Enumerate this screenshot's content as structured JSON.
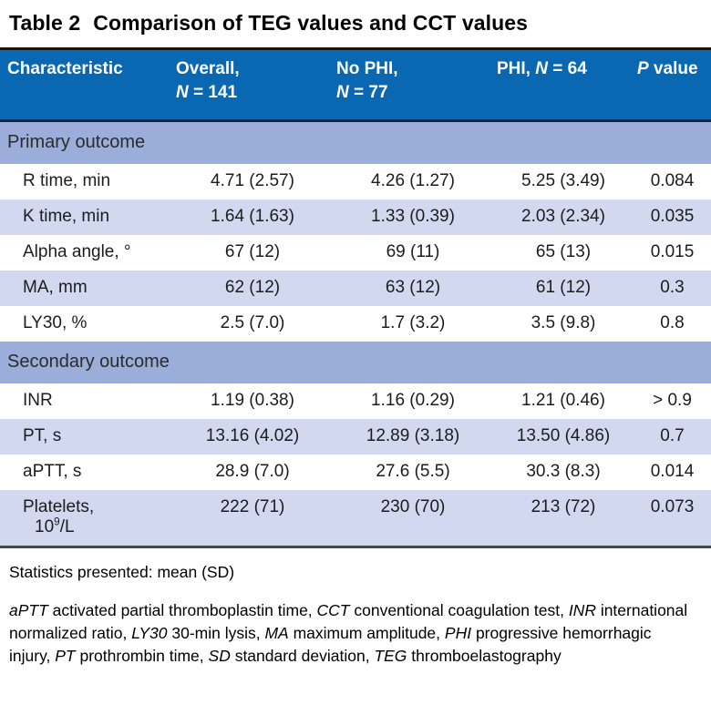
{
  "title": {
    "label": "Table 2",
    "text": "Comparison of TEG values and CCT values"
  },
  "colors": {
    "header-bg": "#0a67b1",
    "header-text": "#ffffff",
    "section-bg": "#9badd9",
    "stripe-bg": "#d2d8ef",
    "rule-dark": "#101f3c",
    "border-top": "#151515",
    "border-bottom": "#474747",
    "text": "#1c1c1c"
  },
  "table": {
    "columns": {
      "c1": {
        "label": "Characteristic"
      },
      "c2": {
        "line1": "Overall,",
        "n": "N",
        "rest": " = 141"
      },
      "c3": {
        "line1": "No PHI,",
        "n": "N",
        "rest": " = 77"
      },
      "c4": {
        "pre": "PHI, ",
        "n": "N",
        "rest": " = 64"
      },
      "c5": {
        "p": "P",
        "rest": " value"
      }
    },
    "sections": [
      {
        "header": "Primary outcome",
        "rows": [
          {
            "label": "R time, min",
            "values": [
              "4.71 (2.57)",
              "4.26 (1.27)",
              "5.25 (3.49)",
              "0.084"
            ]
          },
          {
            "label": "K time, min",
            "values": [
              "1.64 (1.63)",
              "1.33 (0.39)",
              "2.03 (2.34)",
              "0.035"
            ]
          },
          {
            "label": "Alpha angle, °",
            "values": [
              "67 (12)",
              "69 (11)",
              "65 (13)",
              "0.015"
            ]
          },
          {
            "label": "MA, mm",
            "values": [
              "62 (12)",
              "63 (12)",
              "61 (12)",
              "0.3"
            ]
          },
          {
            "label": "LY30, %",
            "values": [
              "2.5 (7.0)",
              "1.7 (3.2)",
              "3.5 (9.8)",
              "0.8"
            ]
          }
        ]
      },
      {
        "header": "Secondary outcome",
        "rows": [
          {
            "label": "INR",
            "values": [
              "1.19 (0.38)",
              "1.16 (0.29)",
              "1.21 (0.46)",
              "> 0.9"
            ]
          },
          {
            "label": "PT, s",
            "values": [
              "13.16 (4.02)",
              "12.89 (3.18)",
              "13.50 (4.86)",
              "0.7"
            ]
          },
          {
            "label": "aPTT, s",
            "values": [
              "28.9 (7.0)",
              "27.6 (5.5)",
              "30.3 (8.3)",
              "0.014"
            ]
          },
          {
            "label": "Platelets,",
            "label2": {
              "pre": "10",
              "sup": "9",
              "post": "/L"
            },
            "values": [
              "222 (71)",
              "230 (70)",
              "213 (72)",
              "0.073"
            ]
          }
        ]
      }
    ]
  },
  "footer": {
    "stats_note": "Statistics presented: mean (SD)",
    "abbreviations": [
      {
        "abbr": "aPTT",
        "desc": "activated partial thromboplastin time"
      },
      {
        "abbr": "CCT",
        "desc": "conventional coagulation test"
      },
      {
        "abbr": "INR",
        "desc": "international normalized ratio"
      },
      {
        "abbr": "LY30",
        "desc": "30-min lysis"
      },
      {
        "abbr": "MA",
        "desc": "maximum amplitude"
      },
      {
        "abbr": "PHI",
        "desc": "progressive hemorrhagic injury"
      },
      {
        "abbr": "PT",
        "desc": "prothrombin time"
      },
      {
        "abbr": "SD",
        "desc": "standard deviation"
      },
      {
        "abbr": "TEG",
        "desc": "thromboelastography"
      }
    ]
  }
}
